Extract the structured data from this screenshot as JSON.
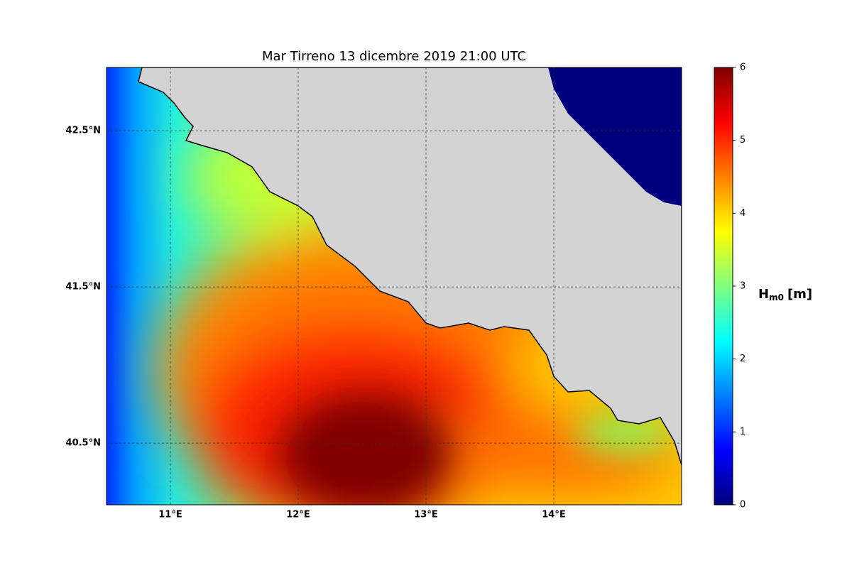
{
  "map": {
    "title": "Mar Tirreno  13 dicembre 2019  21:00 UTC",
    "xlim": [
      10.5,
      15.0
    ],
    "ylim": [
      40.105,
      42.905
    ],
    "xticks": [
      {
        "value": 11,
        "label": "11°E"
      },
      {
        "value": 12,
        "label": "12°E"
      },
      {
        "value": 13,
        "label": "13°E"
      },
      {
        "value": 14,
        "label": "14°E"
      }
    ],
    "yticks": [
      {
        "value": 40.5,
        "label": "40.5°N"
      },
      {
        "value": 41.5,
        "label": "41.5°N"
      },
      {
        "value": 42.5,
        "label": "42.5°N"
      }
    ],
    "grid": true,
    "colorbar": {
      "label": {
        "main": "H",
        "sub": "m0",
        "unit": "[m]"
      },
      "lim": [
        0,
        6
      ],
      "ticks": [
        0,
        1,
        2,
        3,
        4,
        5,
        6
      ],
      "colormap": "jet"
    }
  }
}
